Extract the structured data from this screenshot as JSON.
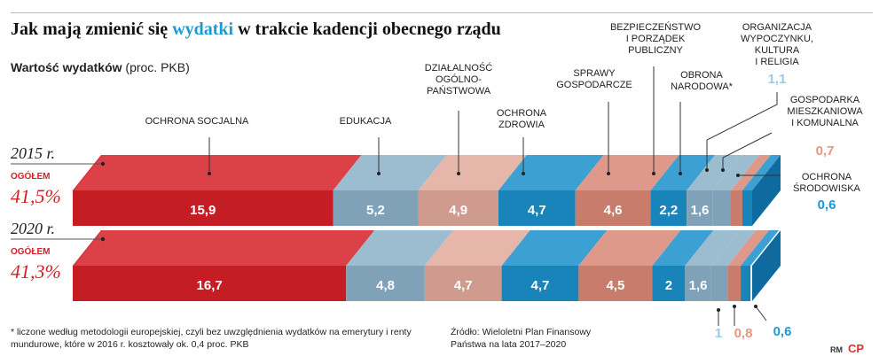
{
  "header": {
    "title_prefix": "Jak mają zmienić się ",
    "title_highlight": "wydatki",
    "title_suffix": " w trakcie kadencji obecnego rządu",
    "subtitle_bold": "Wartość wydatków",
    "subtitle_rest": " (proc. PKB)"
  },
  "colors": {
    "social": "#d51f27",
    "education": "#8ab0c8",
    "general": "#e2a99b",
    "health": "#1a8fca",
    "economic": "#d88775",
    "security": "#1a8fca",
    "defense": "#8ab0c8",
    "leisure": "#8ab0c8",
    "housing": "#d88775",
    "environment": "#1a8fca",
    "accent_blue": "#1a9ad6",
    "accent_red": "#d51f27",
    "accent_light_blue": "#9bc9e8",
    "accent_salmon": "#e8957f"
  },
  "chart_data": {
    "type": "bar",
    "orientation": "horizontal-stacked",
    "unit": "proc. PKB",
    "categories": [
      "2015 r.",
      "2020 r."
    ],
    "totals": {
      "label": "OGÓŁEM",
      "values": [
        "41,5%",
        "41,3%"
      ]
    },
    "series": [
      {
        "name": "OCHRONA SOCJALNA",
        "key": "social",
        "values": [
          15.9,
          16.7
        ],
        "labels": [
          "15,9",
          "16,7"
        ]
      },
      {
        "name": "EDUKACJA",
        "key": "education",
        "values": [
          5.2,
          4.8
        ],
        "labels": [
          "5,2",
          "4,8"
        ]
      },
      {
        "name": "DZIAŁALNOŚĆ OGÓLNO-PAŃSTWOWA",
        "key": "general",
        "values": [
          4.9,
          4.7
        ],
        "labels": [
          "4,9",
          "4,7"
        ]
      },
      {
        "name": "OCHRONA ZDROWIA",
        "key": "health",
        "values": [
          4.7,
          4.7
        ],
        "labels": [
          "4,7",
          "4,7"
        ]
      },
      {
        "name": "SPRAWY GOSPODARCZE",
        "key": "economic",
        "values": [
          4.6,
          4.5
        ],
        "labels": [
          "4,6",
          "4,5"
        ]
      },
      {
        "name": "BEZPIECZEŃSTWO I PORZĄDEK PUBLICZNY",
        "key": "security",
        "values": [
          2.2,
          2.0
        ],
        "labels": [
          "2,2",
          "2"
        ]
      },
      {
        "name": "OBRONA NARODOWA*",
        "key": "defense",
        "values": [
          1.6,
          1.6
        ],
        "labels": [
          "1,6",
          "1,6"
        ]
      },
      {
        "name": "ORGANIZACJA WYPOCZYNKU, KULTURA I RELIGIA",
        "key": "leisure",
        "values": [
          1.1,
          1.0
        ],
        "labels": [
          "1,1",
          "1"
        ]
      },
      {
        "name": "GOSPODARKA MIESZKANIOWA I KOMUNALNA",
        "key": "housing",
        "values": [
          0.7,
          0.8
        ],
        "labels": [
          "0,7",
          "0,8"
        ]
      },
      {
        "name": "OCHRONA ŚRODOWISKA",
        "key": "environment",
        "values": [
          0.6,
          0.6
        ],
        "labels": [
          "0,6",
          "0,6"
        ]
      }
    ],
    "category_labels": [
      {
        "key": "social",
        "lines": [
          "OCHRONA SOCJALNA"
        ]
      },
      {
        "key": "education",
        "lines": [
          "EDUKACJA"
        ]
      },
      {
        "key": "general",
        "lines": [
          "DZIAŁALNOŚĆ",
          "OGÓLNO-",
          "PAŃSTWOWA"
        ]
      },
      {
        "key": "health",
        "lines": [
          "OCHRONA",
          "ZDROWIA"
        ]
      },
      {
        "key": "economic",
        "lines": [
          "SPRAWY",
          "GOSPODARCZE"
        ]
      },
      {
        "key": "security",
        "lines": [
          "BEZPIECZEŃSTWO",
          "I PORZĄDEK",
          "PUBLICZNY"
        ]
      },
      {
        "key": "defense",
        "lines": [
          "OBRONA",
          "NARODOWA*"
        ]
      },
      {
        "key": "leisure",
        "lines": [
          "ORGANIZACJA",
          "WYPOCZYNKU,",
          "KULTURA",
          "I RELIGIA"
        ]
      },
      {
        "key": "housing",
        "lines": [
          "GOSPODARKA",
          "MIESZKANIOWA",
          "I KOMUNALNA"
        ]
      },
      {
        "key": "environment",
        "lines": [
          "OCHRONA",
          "ŚRODOWISKA"
        ]
      }
    ],
    "small_value_labels": {
      "2015": [
        {
          "key": "leisure",
          "text": "1,1"
        },
        {
          "key": "housing",
          "text": "0,7"
        },
        {
          "key": "environment",
          "text": "0,6"
        }
      ],
      "2020": [
        {
          "key": "leisure",
          "text": "1"
        },
        {
          "key": "housing",
          "text": "0,8"
        },
        {
          "key": "environment",
          "text": "0,6"
        }
      ]
    }
  },
  "footer": {
    "footnote": "* liczone według metodologii europejskiej, czyli bez uwzględnienia wydatków na emerytury i renty mundurowe, które w 2016 r. kosztowały ok. 0,4 proc. PKB",
    "source_line1": "Źródło: Wieloletni Plan Finansowy",
    "source_line2": "Państwa na lata 2017–2020",
    "credit": "RM",
    "logo": "CP"
  }
}
